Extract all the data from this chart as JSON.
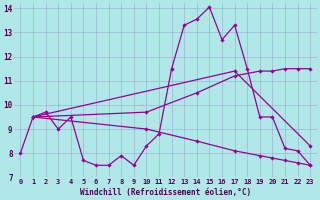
{
  "bg_color": "#b0e8e8",
  "line_color": "#990099",
  "grid_color": "#99aacc",
  "xlabel": "Windchill (Refroidissement éolien,°C)",
  "xlim": [
    -0.5,
    23.5
  ],
  "ylim": [
    7,
    14.2
  ],
  "yticks": [
    7,
    8,
    9,
    10,
    11,
    12,
    13,
    14
  ],
  "xticks": [
    0,
    1,
    2,
    3,
    4,
    5,
    6,
    7,
    8,
    9,
    10,
    11,
    12,
    13,
    14,
    15,
    16,
    17,
    18,
    19,
    20,
    21,
    22,
    23
  ],
  "lines": [
    {
      "x": [
        0,
        1,
        2,
        3,
        4,
        5,
        6,
        7,
        8,
        9,
        10,
        11,
        12,
        13,
        14,
        15,
        16,
        17,
        18,
        19,
        20,
        21,
        22,
        23
      ],
      "y": [
        8.0,
        9.5,
        9.7,
        9.0,
        9.5,
        7.7,
        7.5,
        7.5,
        7.9,
        7.5,
        8.3,
        8.8,
        11.5,
        13.3,
        13.55,
        14.05,
        12.7,
        13.3,
        11.5,
        9.5,
        9.5,
        8.2,
        8.1,
        7.5
      ]
    },
    {
      "x": [
        1,
        10,
        14,
        17,
        19,
        20,
        21,
        22,
        23
      ],
      "y": [
        9.5,
        9.7,
        10.5,
        11.2,
        11.4,
        11.4,
        11.5,
        11.5,
        11.5
      ]
    },
    {
      "x": [
        1,
        10,
        14,
        17,
        19,
        20,
        21,
        22,
        23
      ],
      "y": [
        9.5,
        9.0,
        8.5,
        8.1,
        7.9,
        7.8,
        7.7,
        7.6,
        7.5
      ]
    },
    {
      "x": [
        1,
        17,
        23
      ],
      "y": [
        9.5,
        11.4,
        8.3
      ]
    }
  ]
}
